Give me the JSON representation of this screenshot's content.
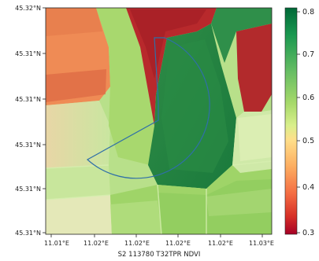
{
  "map": {
    "title": "S2 113780 T32TPR NDVI",
    "y_ticks": [
      "45.32°N",
      "45.31°N",
      "45.31°N",
      "45.31°N",
      "45.31°N",
      "45.31°N"
    ],
    "x_ticks": [
      "11.01°E",
      "11.02°E",
      "11.02°E",
      "11.02°E",
      "11.02°E",
      "11.03°E"
    ],
    "colorbar": {
      "ticks": [
        "0.8",
        "0.7",
        "0.6",
        "0.5",
        "0.4",
        "0.3"
      ],
      "colormap": "RdYlGn",
      "range": [
        0.3,
        0.83
      ]
    },
    "colors": {
      "dark_green": "#1a7a3c",
      "green": "#49a558",
      "light_green": "#a6d96a",
      "pale_green": "#d4ecae",
      "dark_red": "#a71d27",
      "red": "#c43b2f",
      "orange": "#f08a4f",
      "overlay_outline": "#2f6fa8"
    }
  }
}
